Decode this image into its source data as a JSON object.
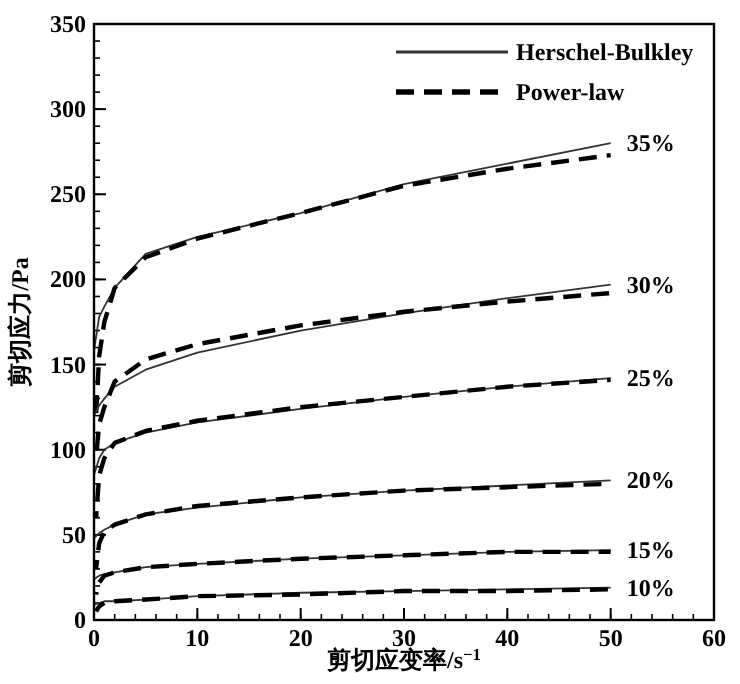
{
  "chart_data": {
    "type": "line",
    "xlabel": "剪切应变率/s$^{−1}$",
    "ylabel": "剪切应力/Pa",
    "xlim": [
      0,
      60
    ],
    "ylim": [
      0,
      350
    ],
    "xticks": [
      0,
      10,
      20,
      30,
      40,
      50,
      60
    ],
    "yticks": [
      0,
      50,
      100,
      150,
      200,
      250,
      300,
      350
    ],
    "grid": false,
    "legend": "top right",
    "marker": "none",
    "series": [
      {
        "name": "Herschel-Bulkley",
        "color": "#333333",
        "line_style": "solid",
        "x": [
          0,
          0.5,
          1,
          2,
          5,
          10,
          20,
          30,
          40,
          50
        ],
        "values": [
          158,
          178,
          184,
          195,
          215,
          225,
          239,
          256,
          268,
          280
        ]
      },
      {
        "name": "Power-law",
        "color": "#000000",
        "line_style": "dashed",
        "x": [
          0.2,
          0.5,
          1,
          2,
          5,
          10,
          20,
          30,
          40,
          50
        ],
        "values": [
          120,
          155,
          175,
          195,
          213,
          224,
          239,
          255,
          265,
          273
        ]
      },
      {
        "color": "#333333",
        "line_style": "solid",
        "x": [
          0,
          0.5,
          1,
          2,
          5,
          10,
          20,
          30,
          40,
          50
        ],
        "values": [
          120,
          126,
          130,
          137,
          147,
          157,
          170,
          180,
          189,
          197
        ]
      },
      {
        "color": "#000000",
        "line_style": "dashed",
        "x": [
          0.2,
          0.5,
          1,
          2,
          5,
          10,
          20,
          30,
          40,
          50
        ],
        "values": [
          95,
          115,
          125,
          140,
          153,
          162,
          173,
          181,
          187,
          192
        ]
      },
      {
        "color": "#333333",
        "line_style": "solid",
        "x": [
          0,
          0.5,
          1,
          2,
          5,
          10,
          20,
          30,
          40,
          50
        ],
        "values": [
          85,
          95,
          100,
          104,
          110,
          116,
          124,
          131,
          137,
          142
        ]
      },
      {
        "color": "#000000",
        "line_style": "dashed",
        "x": [
          0.2,
          0.5,
          1,
          2,
          5,
          10,
          20,
          30,
          40,
          50
        ],
        "values": [
          60,
          85,
          95,
          104,
          111,
          117,
          125,
          131,
          137,
          141
        ]
      },
      {
        "color": "#333333",
        "line_style": "solid",
        "x": [
          0,
          0.5,
          1,
          2,
          5,
          10,
          20,
          30,
          40,
          50
        ],
        "values": [
          48,
          51,
          53,
          56,
          62,
          66,
          72,
          76,
          79,
          82
        ]
      },
      {
        "color": "#000000",
        "line_style": "dashed",
        "x": [
          0.2,
          0.5,
          1,
          2,
          5,
          10,
          20,
          30,
          40,
          50
        ],
        "values": [
          30,
          45,
          52,
          56,
          62,
          67,
          72,
          76,
          78,
          80
        ]
      },
      {
        "color": "#333333",
        "line_style": "solid",
        "x": [
          0,
          0.5,
          1,
          2,
          5,
          10,
          20,
          30,
          40,
          50
        ],
        "values": [
          24,
          26,
          27,
          28,
          31,
          33,
          36,
          38,
          40,
          41
        ]
      },
      {
        "color": "#000000",
        "line_style": "dashed",
        "x": [
          0.2,
          0.5,
          1,
          2,
          5,
          10,
          20,
          30,
          40,
          50
        ],
        "values": [
          15,
          22,
          26,
          28,
          31,
          33,
          36,
          38,
          40,
          40
        ]
      },
      {
        "color": "#333333",
        "line_style": "solid",
        "x": [
          0,
          0.5,
          1,
          2,
          5,
          10,
          20,
          30,
          40,
          50
        ],
        "values": [
          9,
          10,
          11,
          11,
          12,
          14,
          16,
          17,
          18,
          19
        ]
      },
      {
        "color": "#000000",
        "line_style": "dashed",
        "x": [
          0.2,
          0.5,
          1,
          2,
          5,
          10,
          20,
          30,
          40,
          50
        ],
        "values": [
          5,
          8,
          10,
          11,
          12,
          14,
          15,
          17,
          17,
          18
        ]
      }
    ],
    "annotations": [
      "35%",
      "30%",
      "25%",
      "20%",
      "15%",
      "10%"
    ]
  }
}
